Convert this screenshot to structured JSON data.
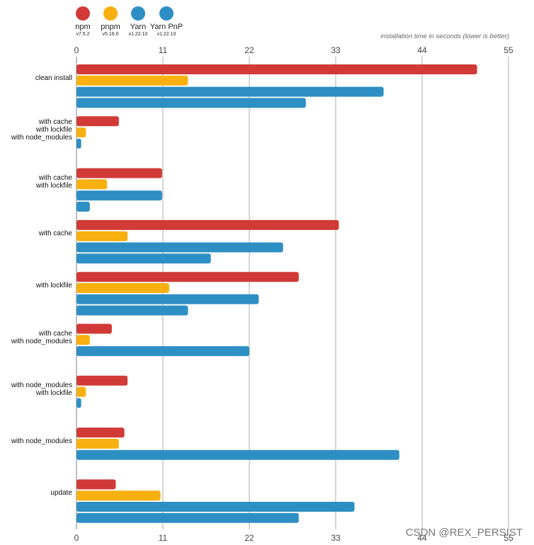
{
  "chart_data": {
    "type": "bar",
    "orientation": "horizontal",
    "title": "",
    "xlabel": "installation time in seconds (lower is better)",
    "ylabel": "",
    "xlim": [
      0,
      55
    ],
    "xticks": [
      "0",
      "11",
      "22",
      "33",
      "44",
      "55"
    ],
    "grid": true,
    "legend_position": "top-left",
    "categories": [
      [
        "clean install"
      ],
      [
        "with cache",
        "with lockfile",
        "with node_modules"
      ],
      [
        "with cache",
        "with lockfile"
      ],
      [
        "with cache"
      ],
      [
        "with lockfile"
      ],
      [
        "with cache",
        "with node_modules"
      ],
      [
        "with node_modules",
        "with lockfile"
      ],
      [
        "with node_modules"
      ],
      [
        "update"
      ]
    ],
    "series": [
      {
        "name": "npm",
        "version": "v7.5.2",
        "color": "#d13a36",
        "values": [
          51,
          5.4,
          10.9,
          33.4,
          28.3,
          4.5,
          6.5,
          6.1,
          5
        ]
      },
      {
        "name": "pnpm",
        "version": "v5.16.0",
        "color": "#f8b010",
        "values": [
          14.2,
          1.2,
          3.9,
          6.5,
          11.8,
          1.7,
          1.2,
          5.4,
          10.7
        ]
      },
      {
        "name": "Yarn",
        "version": "v1.22.10",
        "color": "#2e8fc4",
        "values": [
          39.1,
          0.6,
          10.9,
          26.3,
          23.2,
          22,
          0.6,
          41.1,
          35.4
        ]
      },
      {
        "name": "Yarn PnP",
        "version": "v1.22.10",
        "color": "#2e8fc4",
        "values": [
          29.2,
          null,
          1.7,
          17.1,
          14.2,
          null,
          null,
          null,
          28.3
        ]
      }
    ]
  },
  "watermark": "CSDN @REX_PERSIST"
}
